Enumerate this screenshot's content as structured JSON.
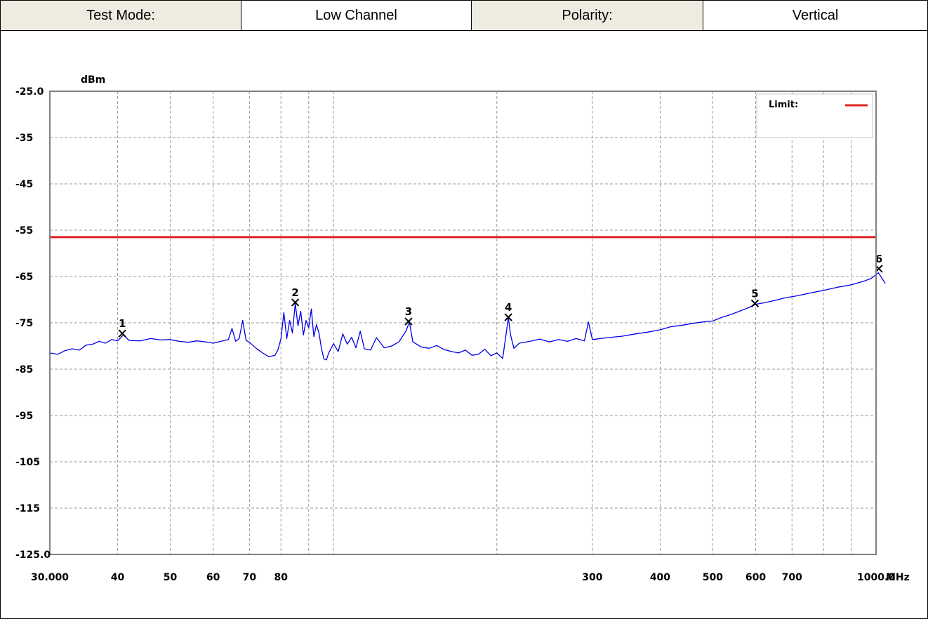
{
  "header": {
    "test_mode_label": "Test Mode:",
    "test_mode_value": "Low Channel",
    "polarity_label": "Polarity:",
    "polarity_value": "Vertical"
  },
  "chart_data": {
    "type": "line",
    "y_unit": "dBm",
    "x_unit": "MHz",
    "x_scale": "log",
    "xlim": [
      30,
      1000
    ],
    "ylim": [
      -125,
      -25
    ],
    "y_ticks": [
      -25,
      -35,
      -45,
      -55,
      -65,
      -75,
      -85,
      -95,
      -105,
      -115,
      -125
    ],
    "y_tick_labels": [
      "-25.0",
      "-35",
      "-45",
      "-55",
      "-65",
      "-75",
      "-85",
      "-95",
      "-105",
      "-115",
      "-125.0"
    ],
    "x_grid": [
      40,
      50,
      60,
      70,
      80,
      90,
      100,
      200,
      300,
      400,
      500,
      600,
      700,
      800,
      900,
      1000
    ],
    "x_ticks": [
      30,
      40,
      50,
      60,
      70,
      80,
      300,
      400,
      500,
      600,
      700,
      1000
    ],
    "x_tick_labels": [
      "30.000",
      "40",
      "50",
      "60",
      "70",
      "80",
      "300",
      "400",
      "500",
      "600",
      "700",
      "1000.0"
    ],
    "grid": true,
    "legend": {
      "placement": "top-right",
      "entries": [
        {
          "label": "Limit:",
          "color": "#E02020"
        }
      ]
    },
    "limit": {
      "value": -56.5,
      "color": "#E02020"
    },
    "trace_color": "#0000E8",
    "trace": [
      [
        30,
        -81.5
      ],
      [
        31,
        -81.8
      ],
      [
        32,
        -81.0
      ],
      [
        33,
        -80.6
      ],
      [
        34,
        -80.9
      ],
      [
        35,
        -79.8
      ],
      [
        36,
        -79.6
      ],
      [
        37,
        -79.0
      ],
      [
        38,
        -79.4
      ],
      [
        39,
        -78.6
      ],
      [
        40,
        -78.9
      ],
      [
        41,
        -77.6
      ],
      [
        42,
        -78.8
      ],
      [
        44,
        -78.9
      ],
      [
        46,
        -78.4
      ],
      [
        48,
        -78.7
      ],
      [
        50,
        -78.6
      ],
      [
        52,
        -79.0
      ],
      [
        54,
        -79.2
      ],
      [
        56,
        -78.9
      ],
      [
        58,
        -79.1
      ],
      [
        60,
        -79.4
      ],
      [
        62,
        -79.0
      ],
      [
        64,
        -78.6
      ],
      [
        65,
        -76.2
      ],
      [
        66,
        -79.0
      ],
      [
        67,
        -78.4
      ],
      [
        68,
        -74.5
      ],
      [
        69,
        -78.8
      ],
      [
        70,
        -79.2
      ],
      [
        72,
        -80.5
      ],
      [
        74,
        -81.5
      ],
      [
        76,
        -82.3
      ],
      [
        78,
        -82.0
      ],
      [
        79,
        -80.8
      ],
      [
        80,
        -78.5
      ],
      [
        81,
        -72.8
      ],
      [
        82,
        -78.4
      ],
      [
        83,
        -74.5
      ],
      [
        84,
        -77.2
      ],
      [
        85,
        -70.8
      ],
      [
        86,
        -75.6
      ],
      [
        87,
        -72.5
      ],
      [
        88,
        -77.6
      ],
      [
        89,
        -74.5
      ],
      [
        90,
        -76.0
      ],
      [
        91,
        -72.0
      ],
      [
        92,
        -78.0
      ],
      [
        93,
        -75.4
      ],
      [
        94,
        -77.2
      ],
      [
        95,
        -80.5
      ],
      [
        96,
        -82.8
      ],
      [
        97,
        -83.0
      ],
      [
        98,
        -81.5
      ],
      [
        100,
        -79.5
      ],
      [
        102,
        -81.2
      ],
      [
        104,
        -77.4
      ],
      [
        106,
        -79.6
      ],
      [
        108,
        -78.1
      ],
      [
        110,
        -80.4
      ],
      [
        112,
        -76.8
      ],
      [
        114,
        -80.6
      ],
      [
        117,
        -80.9
      ],
      [
        120,
        -78.2
      ],
      [
        124,
        -80.4
      ],
      [
        128,
        -80.0
      ],
      [
        132,
        -79.1
      ],
      [
        136,
        -76.8
      ],
      [
        138,
        -74.8
      ],
      [
        140,
        -79.1
      ],
      [
        145,
        -80.2
      ],
      [
        150,
        -80.5
      ],
      [
        155,
        -79.9
      ],
      [
        160,
        -80.8
      ],
      [
        165,
        -81.2
      ],
      [
        170,
        -81.5
      ],
      [
        175,
        -80.9
      ],
      [
        180,
        -82.0
      ],
      [
        185,
        -81.8
      ],
      [
        190,
        -80.7
      ],
      [
        195,
        -82.1
      ],
      [
        200,
        -81.5
      ],
      [
        205,
        -82.7
      ],
      [
        208,
        -77.5
      ],
      [
        210,
        -73.9
      ],
      [
        212,
        -77.6
      ],
      [
        215,
        -80.5
      ],
      [
        220,
        -79.4
      ],
      [
        230,
        -79.0
      ],
      [
        240,
        -78.5
      ],
      [
        250,
        -79.1
      ],
      [
        260,
        -78.6
      ],
      [
        270,
        -79.0
      ],
      [
        280,
        -78.4
      ],
      [
        290,
        -78.9
      ],
      [
        295,
        -74.8
      ],
      [
        300,
        -78.6
      ],
      [
        320,
        -78.2
      ],
      [
        340,
        -77.9
      ],
      [
        360,
        -77.4
      ],
      [
        380,
        -77.0
      ],
      [
        400,
        -76.5
      ],
      [
        420,
        -75.8
      ],
      [
        440,
        -75.5
      ],
      [
        460,
        -75.1
      ],
      [
        480,
        -74.8
      ],
      [
        500,
        -74.6
      ],
      [
        520,
        -73.8
      ],
      [
        540,
        -73.2
      ],
      [
        560,
        -72.5
      ],
      [
        580,
        -71.8
      ],
      [
        600,
        -71.0
      ],
      [
        620,
        -70.7
      ],
      [
        650,
        -70.2
      ],
      [
        680,
        -69.6
      ],
      [
        720,
        -69.1
      ],
      [
        760,
        -68.5
      ],
      [
        800,
        -68.0
      ],
      [
        850,
        -67.3
      ],
      [
        900,
        -66.8
      ],
      [
        950,
        -66.0
      ],
      [
        980,
        -65.4
      ],
      [
        1010,
        -64.2
      ],
      [
        1040,
        -66.5
      ]
    ],
    "markers": [
      {
        "label": "1",
        "x": 40.8,
        "y": -77.3
      },
      {
        "label": "2",
        "x": 85.0,
        "y": -70.6
      },
      {
        "label": "3",
        "x": 137.5,
        "y": -74.7
      },
      {
        "label": "4",
        "x": 210.0,
        "y": -73.8
      },
      {
        "label": "5",
        "x": 598.0,
        "y": -70.8
      },
      {
        "label": "6",
        "x": 1012.0,
        "y": -63.3
      }
    ]
  }
}
